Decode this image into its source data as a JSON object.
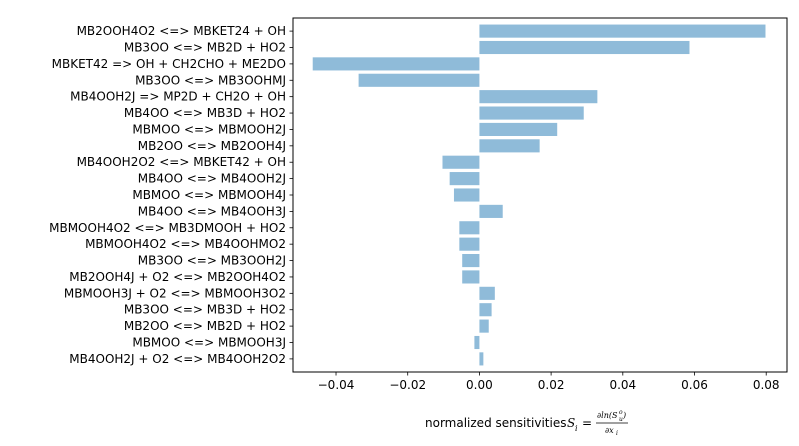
{
  "chart_data": {
    "type": "bar",
    "orientation": "horizontal",
    "categories": [
      "MB2OOH4O2 <=> MBKET24 + OH",
      "MB3OO <=> MB2D + HO2",
      "MBKET42 => OH + CH2CHO + ME2DO",
      "MB3OO <=> MB3OOHMJ",
      "MB4OOH2J => MP2D + CH2O + OH",
      "MB4OO <=> MB3D + HO2",
      "MBMOO <=> MBMOOH2J",
      "MB2OO <=> MB2OOH4J",
      "MB4OOH2O2 <=> MBKET42 + OH",
      "MB4OO <=> MB4OOH2J",
      "MBMOO <=> MBMOOH4J",
      "MB4OO <=> MB4OOH3J",
      "MBMOOH4O2 <=> MB3DMOOH + HO2",
      "MBMOOH4O2 <=> MB4OOHMO2",
      "MB3OO <=> MB3OOH2J",
      "MB2OOH4J + O2 <=> MB2OOH4O2",
      "MBMOOH3J + O2 <=> MBMOOH3O2",
      "MB3OO <=> MB3D + HO2",
      "MB2OO <=> MB2D + HO2",
      "MBMOO <=> MBMOOH3J",
      "MB4OOH2J + O2 <=> MB4OOH2O2"
    ],
    "values": [
      0.0798,
      0.0586,
      -0.0465,
      -0.0337,
      0.0329,
      0.0291,
      0.0217,
      0.0168,
      -0.0103,
      -0.0083,
      -0.0071,
      0.0065,
      -0.0056,
      -0.0056,
      -0.0048,
      -0.0048,
      0.0043,
      0.0034,
      0.0026,
      -0.0014,
      0.0011
    ],
    "xlim": [
      -0.052,
      0.0858
    ],
    "xticks": [
      -0.04,
      -0.02,
      0.0,
      0.02,
      0.04,
      0.06,
      0.08
    ],
    "xtick_labels": [
      "−0.04",
      "−0.02",
      "0.00",
      "0.02",
      "0.04",
      "0.06",
      "0.08"
    ],
    "xlabel_text": "normalized sensitivities",
    "xlabel_symbol": "S",
    "xlabel_subscript": "i",
    "xlabel_equals": "=",
    "xlabel_numerator": "∂ln(S",
    "xlabel_numerator_sup": "o",
    "xlabel_numerator_sub": "u",
    "xlabel_numerator_close": ")",
    "xlabel_denominator": "∂x",
    "xlabel_denominator_sub": "i",
    "ylabel": "",
    "title": "",
    "grid": false,
    "bar_color": "#8fbbd9"
  }
}
